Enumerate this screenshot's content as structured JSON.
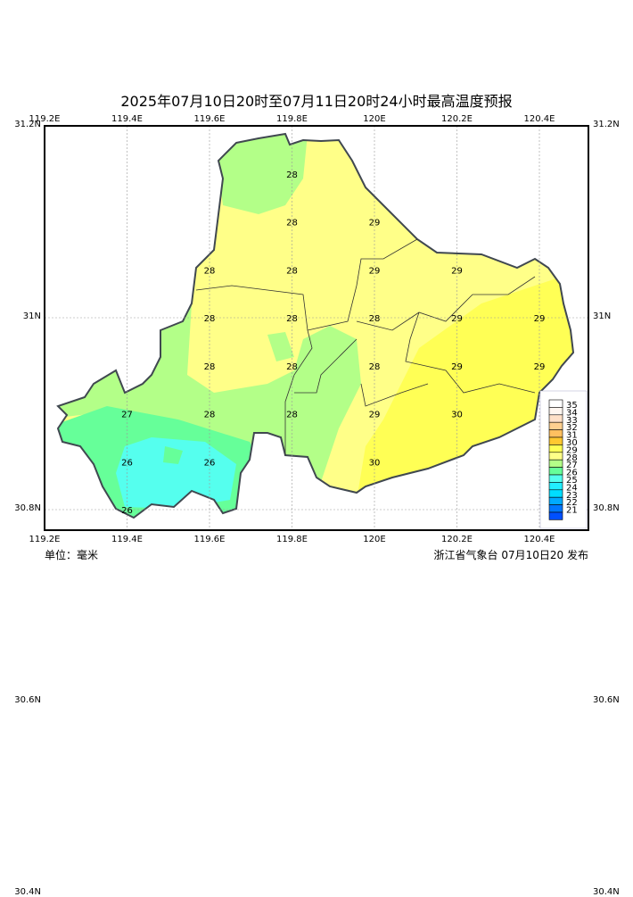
{
  "title": "2025年07月10日20时至07月11日20时24小时最高温度预报",
  "lon_ticks": [
    "119.2E",
    "119.4E",
    "119.6E",
    "119.8E",
    "120E",
    "120.2E",
    "120.4E"
  ],
  "lat_ticks": [
    "31.2N",
    "31N",
    "30.8N",
    "30.6N",
    "30.4N"
  ],
  "unit_label": "单位：毫米",
  "issuer": "浙江省气象台 07月10日20 发布",
  "legend": [
    {
      "v": "35",
      "c": "#ffffff"
    },
    {
      "v": "34",
      "c": "#fff6f0"
    },
    {
      "v": "33",
      "c": "#ffe0c8"
    },
    {
      "v": "32",
      "c": "#ffd090"
    },
    {
      "v": "31",
      "c": "#ffc060"
    },
    {
      "v": "30",
      "c": "#ffc830"
    },
    {
      "v": "29",
      "c": "#ffff55"
    },
    {
      "v": "28",
      "c": "#ffff88"
    },
    {
      "v": "27",
      "c": "#b3ff88"
    },
    {
      "v": "26",
      "c": "#66ff99"
    },
    {
      "v": "25",
      "c": "#55ffee"
    },
    {
      "v": "24",
      "c": "#22eeff"
    },
    {
      "v": "23",
      "c": "#00ddff"
    },
    {
      "v": "22",
      "c": "#00aaff"
    },
    {
      "v": "21",
      "c": "#0077ff"
    },
    {
      "v": "",
      "c": "#0050ff"
    }
  ],
  "station_values": [
    {
      "lon": 119.8,
      "lat": 31.1,
      "t": "28"
    },
    {
      "lon": 119.8,
      "lat": 31.0,
      "t": "28"
    },
    {
      "lon": 120.0,
      "lat": 31.0,
      "t": "29"
    },
    {
      "lon": 119.6,
      "lat": 30.9,
      "t": "28"
    },
    {
      "lon": 119.8,
      "lat": 30.9,
      "t": "28"
    },
    {
      "lon": 120.0,
      "lat": 30.9,
      "t": "29"
    },
    {
      "lon": 120.2,
      "lat": 30.9,
      "t": "29"
    },
    {
      "lon": 119.6,
      "lat": 30.8,
      "t": "28"
    },
    {
      "lon": 119.8,
      "lat": 30.8,
      "t": "28"
    },
    {
      "lon": 120.0,
      "lat": 30.8,
      "t": "28"
    },
    {
      "lon": 120.2,
      "lat": 30.8,
      "t": "29"
    },
    {
      "lon": 120.4,
      "lat": 30.8,
      "t": "29"
    },
    {
      "lon": 119.6,
      "lat": 30.7,
      "t": "28"
    },
    {
      "lon": 119.8,
      "lat": 30.7,
      "t": "28"
    },
    {
      "lon": 120.0,
      "lat": 30.7,
      "t": "28"
    },
    {
      "lon": 120.2,
      "lat": 30.7,
      "t": "29"
    },
    {
      "lon": 120.4,
      "lat": 30.7,
      "t": "29"
    },
    {
      "lon": 119.4,
      "lat": 30.6,
      "t": "27"
    },
    {
      "lon": 119.6,
      "lat": 30.6,
      "t": "28"
    },
    {
      "lon": 119.8,
      "lat": 30.6,
      "t": "28"
    },
    {
      "lon": 120.0,
      "lat": 30.6,
      "t": "29"
    },
    {
      "lon": 120.2,
      "lat": 30.6,
      "t": "30"
    },
    {
      "lon": 119.4,
      "lat": 30.5,
      "t": "26"
    },
    {
      "lon": 119.6,
      "lat": 30.5,
      "t": "26"
    },
    {
      "lon": 120.0,
      "lat": 30.5,
      "t": "30"
    },
    {
      "lon": 119.4,
      "lat": 30.4,
      "t": "26"
    }
  ]
}
